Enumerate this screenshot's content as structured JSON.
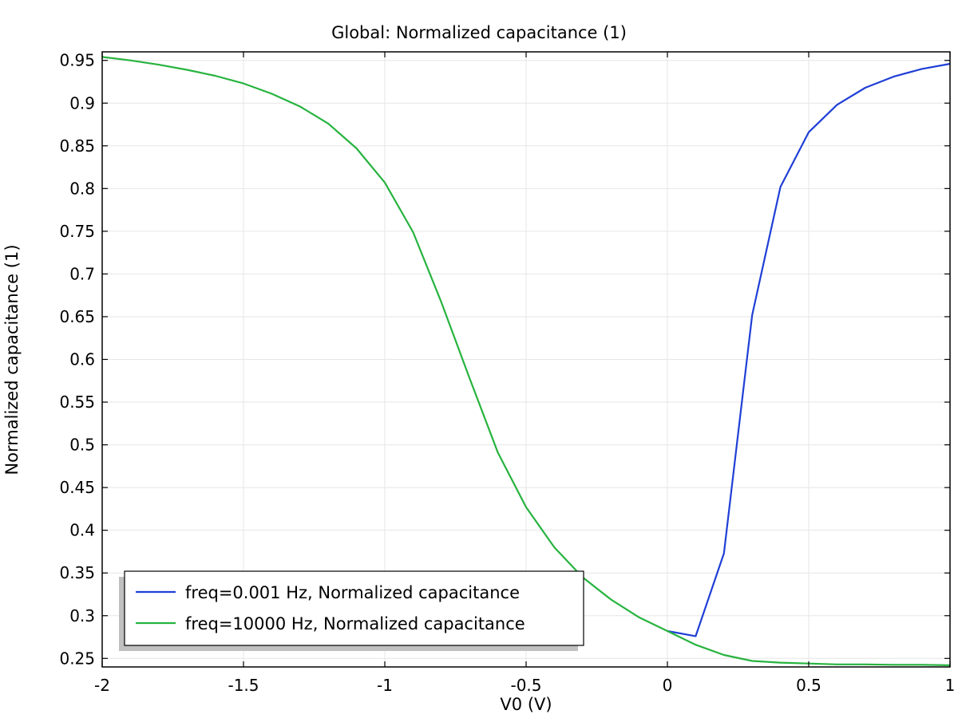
{
  "chart_data": {
    "type": "line",
    "title": "Global: Normalized capacitance (1)",
    "xlabel": "V0 (V)",
    "ylabel": "Normalized capacitance (1)",
    "xlim": [
      -2,
      1
    ],
    "ylim": [
      0.24,
      0.96
    ],
    "xticks": [
      -2,
      -1.5,
      -1,
      -0.5,
      0,
      0.5,
      1
    ],
    "xtick_labels": [
      "-2",
      "-1.5",
      "-1",
      "-0.5",
      "0",
      "0.5",
      "1"
    ],
    "yticks": [
      0.25,
      0.3,
      0.35,
      0.4,
      0.45,
      0.5,
      0.55,
      0.6,
      0.65,
      0.7,
      0.75,
      0.8,
      0.85,
      0.9,
      0.95
    ],
    "ytick_labels": [
      "0.25",
      "0.3",
      "0.35",
      "0.4",
      "0.45",
      "0.5",
      "0.55",
      "0.6",
      "0.65",
      "0.7",
      "0.75",
      "0.8",
      "0.85",
      "0.9",
      "0.95"
    ],
    "grid": true,
    "legend_position": "bottom-left",
    "series": [
      {
        "name": "freq=0.001 Hz, Normalized capacitance",
        "color": "#1f3fd6",
        "x": [
          0,
          0.1,
          0.2,
          0.3,
          0.4,
          0.5,
          0.6,
          0.7,
          0.8,
          0.9,
          1.0
        ],
        "y": [
          0.282,
          0.276,
          0.373,
          0.652,
          0.802,
          0.866,
          0.898,
          0.918,
          0.931,
          0.94,
          0.946
        ]
      },
      {
        "name": "freq=10000 Hz, Normalized capacitance",
        "color": "#27b33f",
        "x": [
          -2.0,
          -1.9,
          -1.8,
          -1.7,
          -1.6,
          -1.5,
          -1.4,
          -1.3,
          -1.2,
          -1.1,
          -1.0,
          -0.9,
          -0.8,
          -0.7,
          -0.6,
          -0.5,
          -0.4,
          -0.3,
          -0.2,
          -0.1,
          0.0,
          0.1,
          0.2,
          0.3,
          0.4,
          0.5,
          0.6,
          0.7,
          0.8,
          0.9,
          1.0
        ],
        "y": [
          0.954,
          0.95,
          0.945,
          0.939,
          0.932,
          0.923,
          0.911,
          0.896,
          0.876,
          0.847,
          0.807,
          0.749,
          0.667,
          0.578,
          0.491,
          0.427,
          0.38,
          0.345,
          0.319,
          0.298,
          0.282,
          0.266,
          0.254,
          0.247,
          0.245,
          0.244,
          0.243,
          0.243,
          0.2425,
          0.2425,
          0.242
        ]
      }
    ]
  }
}
